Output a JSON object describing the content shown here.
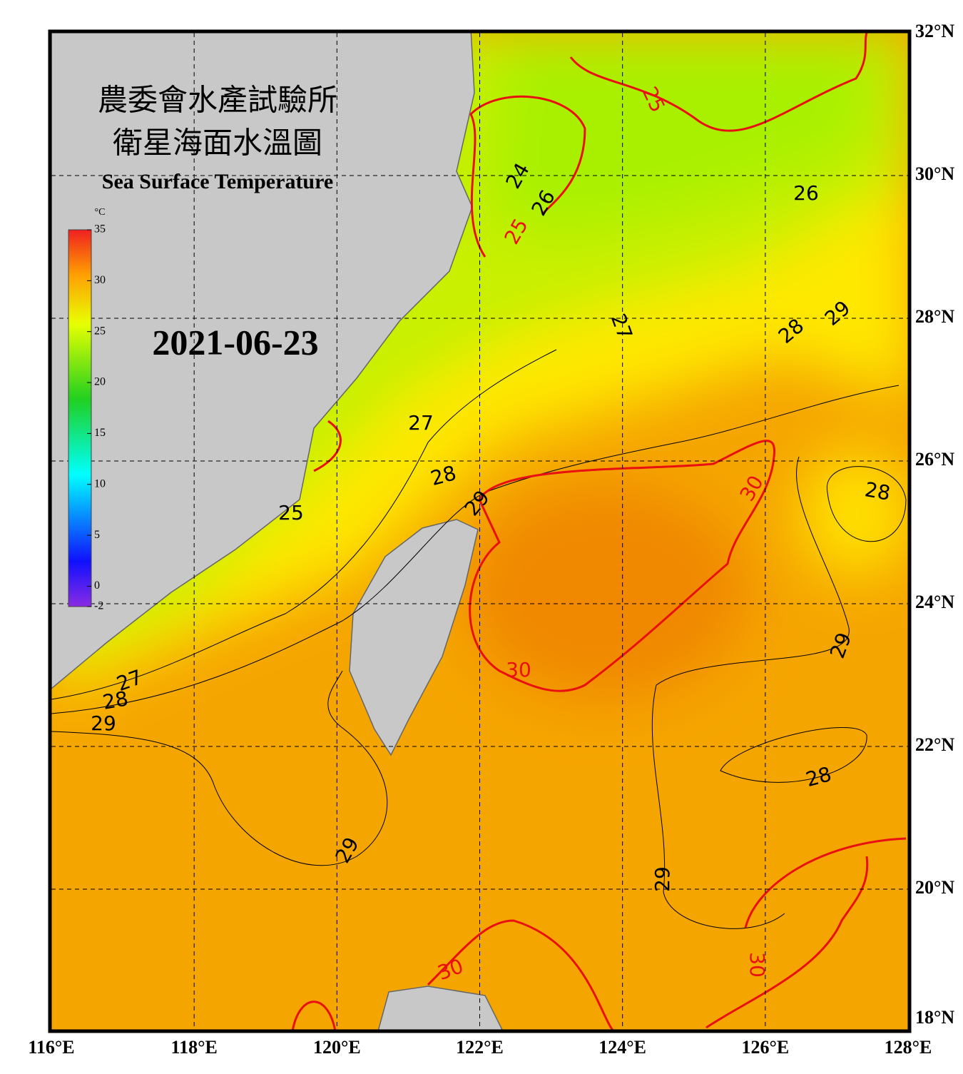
{
  "chart_data": {
    "type": "map",
    "title": [
      "農委會水產試驗所",
      "衛星海面水溫圖"
    ],
    "subtitle": "Sea Surface Temperature",
    "date": "2021-06-23",
    "xlim": [
      116,
      128
    ],
    "ylim": [
      18,
      32
    ],
    "xticks": [
      {
        "value": 116,
        "label": "116°E"
      },
      {
        "value": 118,
        "label": "118°E"
      },
      {
        "value": 120,
        "label": "120°E"
      },
      {
        "value": 122,
        "label": "122°E"
      },
      {
        "value": 124,
        "label": "124°E"
      },
      {
        "value": 126,
        "label": "126°E"
      },
      {
        "value": 128,
        "label": "128°E"
      }
    ],
    "yticks": [
      {
        "value": 18,
        "label": "18°N"
      },
      {
        "value": 20,
        "label": "20°N"
      },
      {
        "value": 22,
        "label": "22°N"
      },
      {
        "value": 24,
        "label": "24°N"
      },
      {
        "value": 26,
        "label": "26°N"
      },
      {
        "value": 28,
        "label": "28°N"
      },
      {
        "value": 30,
        "label": "30°N"
      },
      {
        "value": 32,
        "label": "32°N"
      }
    ],
    "colorbar": {
      "unit": "°C",
      "lim": [
        -2,
        35
      ],
      "ticks": [
        35,
        30,
        25,
        20,
        15,
        10,
        5,
        0,
        -2
      ]
    },
    "contour_labels": [
      25,
      24,
      26,
      25,
      26,
      27,
      28,
      29,
      27,
      28,
      29,
      30,
      28,
      25,
      27,
      28,
      29,
      30,
      29,
      28,
      29,
      29,
      30,
      30
    ]
  }
}
